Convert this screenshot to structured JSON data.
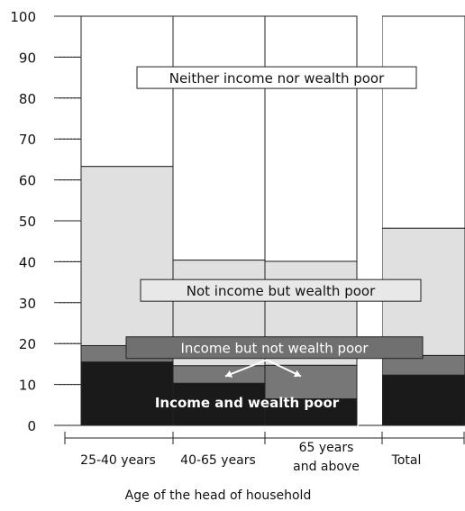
{
  "chart_data": {
    "type": "bar",
    "stacked": true,
    "variable_width": true,
    "xlabel": "Age of the head of household",
    "ylabel": "",
    "ylim": [
      0,
      100
    ],
    "yticks": [
      0,
      10,
      20,
      30,
      40,
      50,
      60,
      70,
      80,
      90,
      100
    ],
    "grid": false,
    "categories": [
      [
        "25-40 years"
      ],
      [
        "40-65 years"
      ],
      [
        "65 years",
        "and above"
      ],
      [
        "Total"
      ]
    ],
    "category_widths": [
      102,
      102,
      102,
      92
    ],
    "series": [
      {
        "name": "Income and wealth poor",
        "values": [
          15.5,
          10.3,
          6.5,
          12.3
        ]
      },
      {
        "name": "Income but not wealth poor",
        "values": [
          4.0,
          4.3,
          8.2,
          4.8
        ]
      },
      {
        "name": "Not income but wealth poor",
        "values": [
          43.8,
          25.8,
          25.4,
          31.1
        ]
      },
      {
        "name": "Neither income nor wealth poor",
        "values": [
          36.7,
          59.6,
          59.9,
          51.8
        ]
      }
    ],
    "series_colors": [
      "#1a1a1a",
      "#777777",
      "#e0e0e0",
      "#ffffff"
    ],
    "annotations": [
      {
        "text": "Neither income nor wealth poor",
        "y": 85,
        "style": "box-white"
      },
      {
        "text": "Not income but wealth poor",
        "y": 33,
        "style": "box-light"
      },
      {
        "text": "Income but not wealth poor",
        "y": 19,
        "style": "box-dark"
      },
      {
        "text": "Income and wealth poor",
        "y": 3.5,
        "style": "label-white"
      }
    ]
  }
}
